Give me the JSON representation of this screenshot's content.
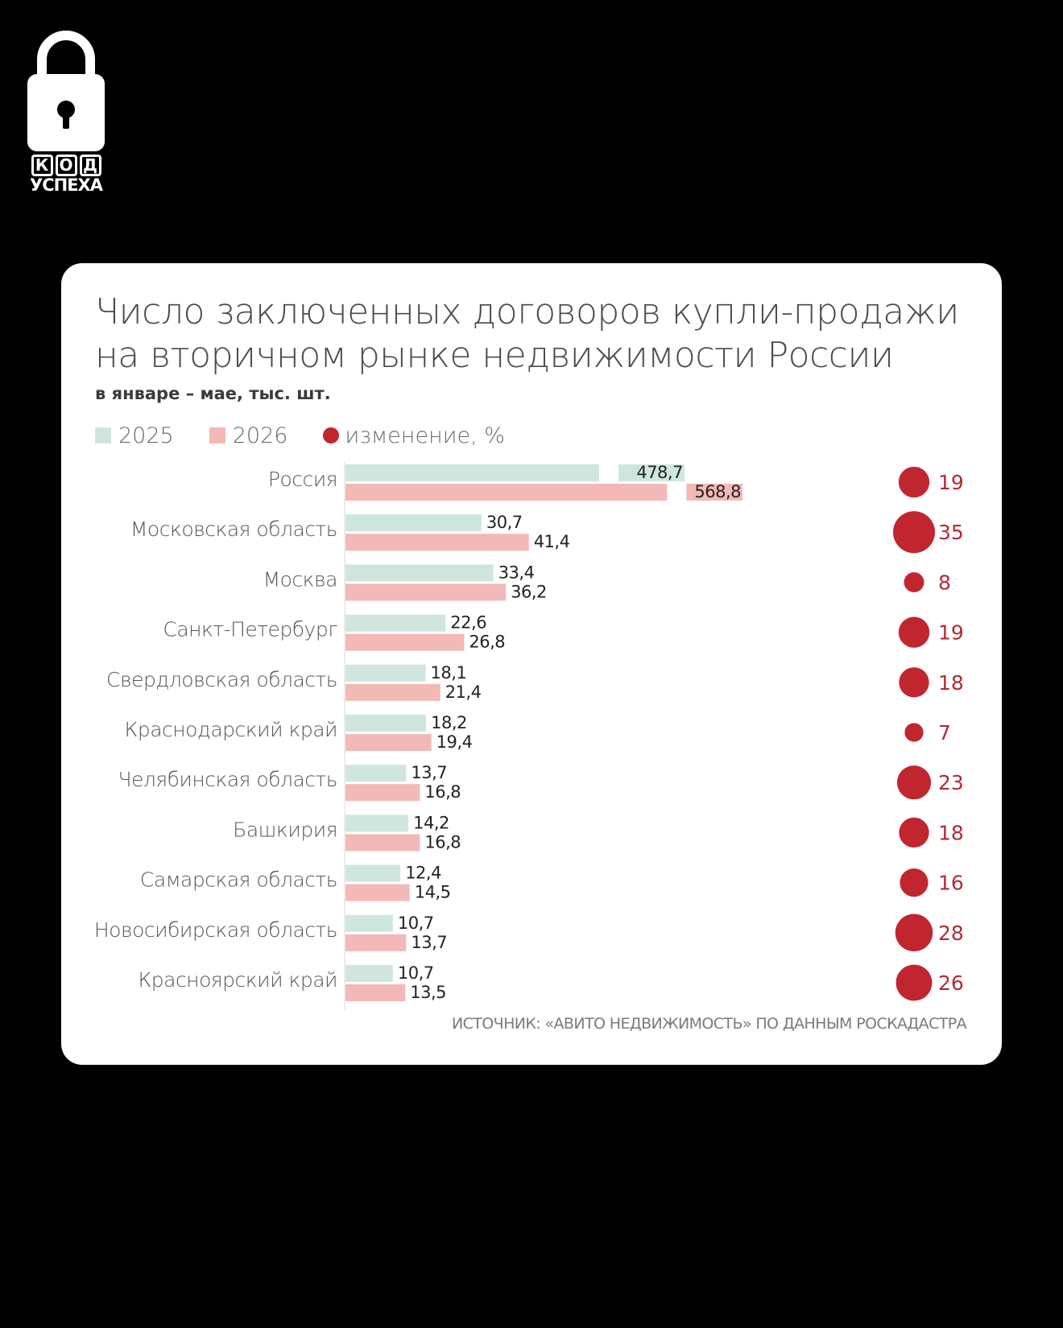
{
  "logo": {
    "top_text": "КОД",
    "bottom_text": "УСПЕХА"
  },
  "title_line1": "Число заключенных договоров купли-продажи",
  "title_line2": "на вторичном рынке недвижимости России",
  "subtitle": "в январе – мае, тыс. шт.",
  "source": "ИСТОЧНИК: «АВИТО НЕДВИЖИМОСТЬ» ПО ДАННЫМ РОСКАДАСТРА",
  "colors": {
    "series2025": "#cfe6df",
    "series2026": "#f2b9b6",
    "change": "#c1262f"
  },
  "chart_data": {
    "type": "bar",
    "orientation": "horizontal",
    "title": "Число заключенных договоров купли-продажи на вторичном рынке недвижимости России",
    "subtitle": "в январе – мае, тыс. шт.",
    "categories": [
      "Россия",
      "Московская область",
      "Москва",
      "Санкт-Петербург",
      "Свердловская область",
      "Краснодарский край",
      "Челябинская область",
      "Башкирия",
      "Самарская область",
      "Новосибирская область",
      "Красноярский край"
    ],
    "series": [
      {
        "name": "2025",
        "values": [
          478.7,
          30.7,
          33.4,
          22.6,
          18.1,
          18.2,
          13.7,
          14.2,
          12.4,
          10.7,
          10.7
        ],
        "labels": [
          "478,7",
          "30,7",
          "33,4",
          "22,6",
          "18,1",
          "18,2",
          "13,7",
          "14,2",
          "12,4",
          "10,7",
          "10,7"
        ]
      },
      {
        "name": "2026",
        "values": [
          568.8,
          41.4,
          36.2,
          26.8,
          21.4,
          19.4,
          16.8,
          16.8,
          14.5,
          13.7,
          13.5
        ],
        "labels": [
          "568,8",
          "41,4",
          "36,2",
          "26,8",
          "21,4",
          "19,4",
          "16,8",
          "16,8",
          "14,5",
          "13,7",
          "13,5"
        ]
      },
      {
        "name": "изменение, %",
        "values": [
          19,
          35,
          8,
          19,
          18,
          7,
          23,
          18,
          16,
          28,
          26
        ]
      }
    ],
    "axis_break": {
      "first_category_only": true
    },
    "legend": "top-left",
    "grid": false
  }
}
